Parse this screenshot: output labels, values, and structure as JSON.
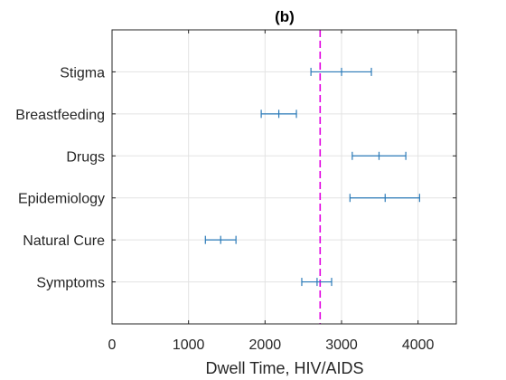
{
  "chart_data": {
    "type": "errorbar",
    "title": "(b)",
    "xlabel": "Dwell Time, HIV/AIDS",
    "ylabel": "",
    "xlim": [
      0,
      4500
    ],
    "xticks": [
      0,
      1000,
      2000,
      3000,
      4000
    ],
    "xtick_labels": [
      "0",
      "1000",
      "2000",
      "3000",
      "4000"
    ],
    "grid": true,
    "reference_line": {
      "x": 2720,
      "style": "dashed",
      "color": "#e000e0"
    },
    "series_color": "#2a7ab8",
    "categories": [
      "Stigma",
      "Breastfeeding",
      "Drugs",
      "Epidemiology",
      "Natural Cure",
      "Symptoms"
    ],
    "points": [
      {
        "label": "Stigma",
        "mean": 3000,
        "low": 2600,
        "high": 3390
      },
      {
        "label": "Breastfeeding",
        "mean": 2180,
        "low": 1950,
        "high": 2410
      },
      {
        "label": "Drugs",
        "mean": 3490,
        "low": 3140,
        "high": 3840
      },
      {
        "label": "Epidemiology",
        "mean": 3570,
        "low": 3110,
        "high": 4020
      },
      {
        "label": "Natural Cure",
        "mean": 1420,
        "low": 1220,
        "high": 1620
      },
      {
        "label": "Symptoms",
        "mean": 2680,
        "low": 2480,
        "high": 2870
      }
    ]
  }
}
